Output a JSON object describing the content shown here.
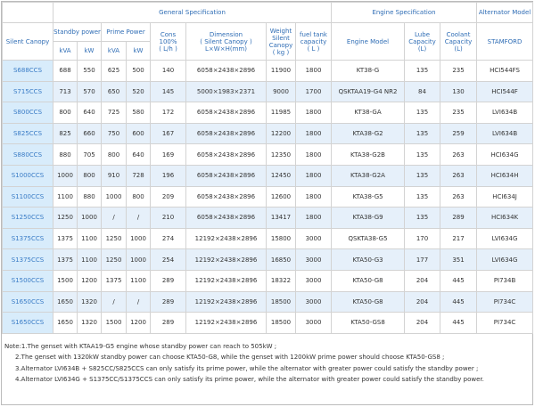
{
  "table": {
    "group_headers": [
      "General Specification",
      "Engine Specification",
      "Alternator Model"
    ],
    "column_headers": {
      "silent": [
        "Silent Canopy"
      ],
      "standby": [
        "Standby power"
      ],
      "prime": [
        "Prime Power"
      ],
      "cons": [
        "Cons",
        "100%",
        "( L/h )"
      ],
      "dimension": [
        "Dimension",
        "( Silent Canopy )",
        "L×W×H(mm)"
      ],
      "weight": [
        "Weight",
        "Silent",
        "Canopy",
        "( kg )"
      ],
      "fuel": [
        "fuel tank",
        "capacity",
        "( L )"
      ],
      "engine": [
        "Engine Model"
      ],
      "lube": [
        "Lube",
        "Capacity",
        "(L)"
      ],
      "coolant": [
        "Coolant",
        "Capacity",
        "(L)"
      ],
      "alternator": [
        "STAMFORD"
      ]
    },
    "unit_headers": [
      "kVA",
      "kW",
      "kVA",
      "kW"
    ],
    "rows": [
      [
        "S688CCS",
        688,
        550,
        625,
        500,
        140,
        "6058×2438×2896",
        11900,
        1800,
        "KT38-G",
        135,
        235,
        "HCI544FS"
      ],
      [
        "S715CCS",
        713,
        570,
        650,
        520,
        145,
        "5000×1983×2371",
        9000,
        1700,
        "QSKTAA19-G4 NR2",
        84,
        130,
        "HCI544F"
      ],
      [
        "S800CCS",
        800,
        640,
        725,
        580,
        172,
        "6058×2438×2896",
        11985,
        1800,
        "KT38-GA",
        135,
        235,
        "LVI634B"
      ],
      [
        "S825CCS",
        825,
        660,
        750,
        600,
        167,
        "6058×2438×2896",
        12200,
        1800,
        "KTA38-G2",
        135,
        259,
        "LVI634B"
      ],
      [
        "S880CCS",
        880,
        705,
        800,
        640,
        169,
        "6058×2438×2896",
        12350,
        1800,
        "KTA38-G2B",
        135,
        263,
        "HCI634G"
      ],
      [
        "S1000CCS",
        1000,
        800,
        910,
        728,
        196,
        "6058×2438×2896",
        12450,
        1800,
        "KTA38-G2A",
        135,
        263,
        "HCI634H"
      ],
      [
        "S1100CCS",
        1100,
        880,
        1000,
        800,
        209,
        "6058×2438×2896",
        12600,
        1800,
        "KTA38-G5",
        135,
        263,
        "HCI634J"
      ],
      [
        "S1250CCS",
        1250,
        1000,
        "/",
        "/",
        210,
        "6058×2438×2896",
        13417,
        1800,
        "KTA38-G9",
        135,
        289,
        "HCI634K"
      ],
      [
        "S1375CCS",
        1375,
        1100,
        1250,
        1000,
        274,
        "12192×2438×2896",
        15800,
        3000,
        "QSKTA38-G5",
        170,
        217,
        "LVI634G"
      ],
      [
        "S1375CCS",
        1375,
        1100,
        1250,
        1000,
        254,
        "12192×2438×2896",
        16850,
        3000,
        "KTA50-G3",
        177,
        351,
        "LVI634G"
      ],
      [
        "S1500CCS",
        1500,
        1200,
        1375,
        1100,
        289,
        "12192×2438×2896",
        18322,
        3000,
        "KTA50-G8",
        204,
        445,
        "PI734B"
      ],
      [
        "S1650CCS",
        1650,
        1320,
        "/",
        "/",
        289,
        "12192×2438×2896",
        18500,
        3000,
        "KTA50-G8",
        204,
        445,
        "PI734C"
      ],
      [
        "S1650CCS",
        1650,
        1320,
        1500,
        1200,
        289,
        "12192×2438×2896",
        18500,
        3000,
        "KTA50-GS8",
        204,
        445,
        "PI734C"
      ]
    ]
  },
  "notes": [
    "Note:1.The genset with KTAA19-G5 engine whose standby power can reach to 505kW ;",
    "2.The genset with 1320kW standby power can choose KTA50-G8, while the genset with 1200kW prime power should choose KTA50-GS8 ;",
    "3.Alternator LVI634B + S825CC/S825CCS can only satisfy its prime power, while the alternator with greater power could satisfy the standby power ;",
    "4.Alternator LVI634G + S1375CC/S1375CCS can only satisfy its prime power, while the alternator with greater power could satisfy the standby power."
  ]
}
